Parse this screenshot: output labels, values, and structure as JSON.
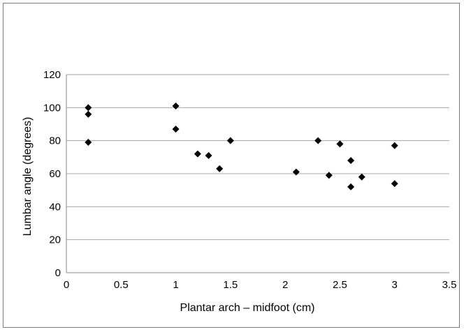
{
  "chart_data": {
    "type": "scatter",
    "title": "",
    "xlabel": "Plantar arch – midfoot (cm)",
    "ylabel": "Lumbar angle (degrees)",
    "xlim": [
      0,
      3.5
    ],
    "ylim": [
      0,
      120
    ],
    "xticks": [
      0,
      0.5,
      1,
      1.5,
      2,
      2.5,
      3,
      3.5
    ],
    "yticks": [
      0,
      20,
      40,
      60,
      80,
      100,
      120
    ],
    "xtick_labels": [
      "0",
      "0.5",
      "1",
      "1.5",
      "2",
      "2.5",
      "3",
      "3.5"
    ],
    "ytick_labels": [
      "0",
      "20",
      "40",
      "60",
      "80",
      "100",
      "120"
    ],
    "grid": "horizontal",
    "legend": "none",
    "marker": "diamond",
    "marker_color": "#000000",
    "grid_color": "#a6a6a6",
    "series": [
      {
        "points": [
          {
            "x": 0.2,
            "y": 100
          },
          {
            "x": 0.2,
            "y": 96
          },
          {
            "x": 0.2,
            "y": 79
          },
          {
            "x": 1.0,
            "y": 101
          },
          {
            "x": 1.0,
            "y": 87
          },
          {
            "x": 1.2,
            "y": 72
          },
          {
            "x": 1.3,
            "y": 71
          },
          {
            "x": 1.4,
            "y": 63
          },
          {
            "x": 1.5,
            "y": 80
          },
          {
            "x": 2.1,
            "y": 61
          },
          {
            "x": 2.3,
            "y": 80
          },
          {
            "x": 2.4,
            "y": 59
          },
          {
            "x": 2.5,
            "y": 78
          },
          {
            "x": 2.6,
            "y": 68
          },
          {
            "x": 2.6,
            "y": 52
          },
          {
            "x": 2.7,
            "y": 58
          },
          {
            "x": 3.0,
            "y": 77
          },
          {
            "x": 3.0,
            "y": 54
          }
        ]
      }
    ]
  }
}
